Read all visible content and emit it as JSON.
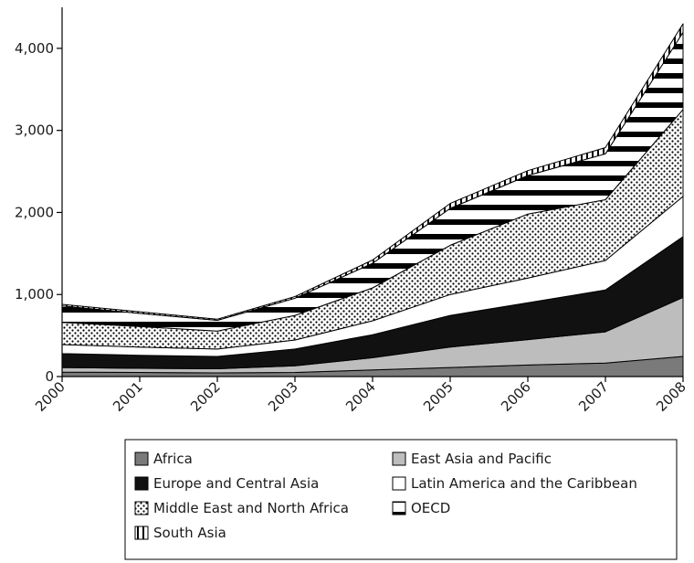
{
  "chart_data": {
    "type": "area",
    "stacked": true,
    "title": "",
    "xlabel": "",
    "ylabel": "",
    "x": [
      "2000",
      "2001",
      "2002",
      "2003",
      "2004",
      "2005",
      "2006",
      "2007",
      "2008"
    ],
    "ylim": [
      0,
      4500
    ],
    "yticks": [
      0,
      1000,
      2000,
      3000,
      4000
    ],
    "ytick_labels": [
      "0",
      "1,000",
      "2,000",
      "3,000",
      "4,000"
    ],
    "grid": false,
    "legend_position": "bottom",
    "series": [
      {
        "name": "Africa",
        "values": [
          55,
          50,
          45,
          50,
          80,
          110,
          140,
          165,
          245
        ],
        "fill": "gray"
      },
      {
        "name": "East Asia and Pacific",
        "values": [
          55,
          50,
          50,
          80,
          150,
          250,
          310,
          380,
          720
        ],
        "fill": "lightgray"
      },
      {
        "name": "Europe and Central Asia",
        "values": [
          170,
          160,
          150,
          205,
          280,
          385,
          450,
          510,
          740
        ],
        "fill": "black"
      },
      {
        "name": "Latin America and the Caribbean",
        "values": [
          110,
          100,
          90,
          110,
          170,
          255,
          300,
          360,
          490
        ],
        "fill": "white"
      },
      {
        "name": "Middle East and North Africa",
        "values": [
          270,
          250,
          220,
          300,
          400,
          600,
          780,
          740,
          1060
        ],
        "fill": "dots"
      },
      {
        "name": "OECD",
        "values": [
          200,
          160,
          130,
          210,
          300,
          450,
          470,
          560,
          940
        ],
        "fill": "hstripes"
      },
      {
        "name": "South Asia",
        "values": [
          20,
          20,
          15,
          20,
          40,
          60,
          60,
          75,
          105
        ],
        "fill": "vstripes"
      }
    ]
  }
}
